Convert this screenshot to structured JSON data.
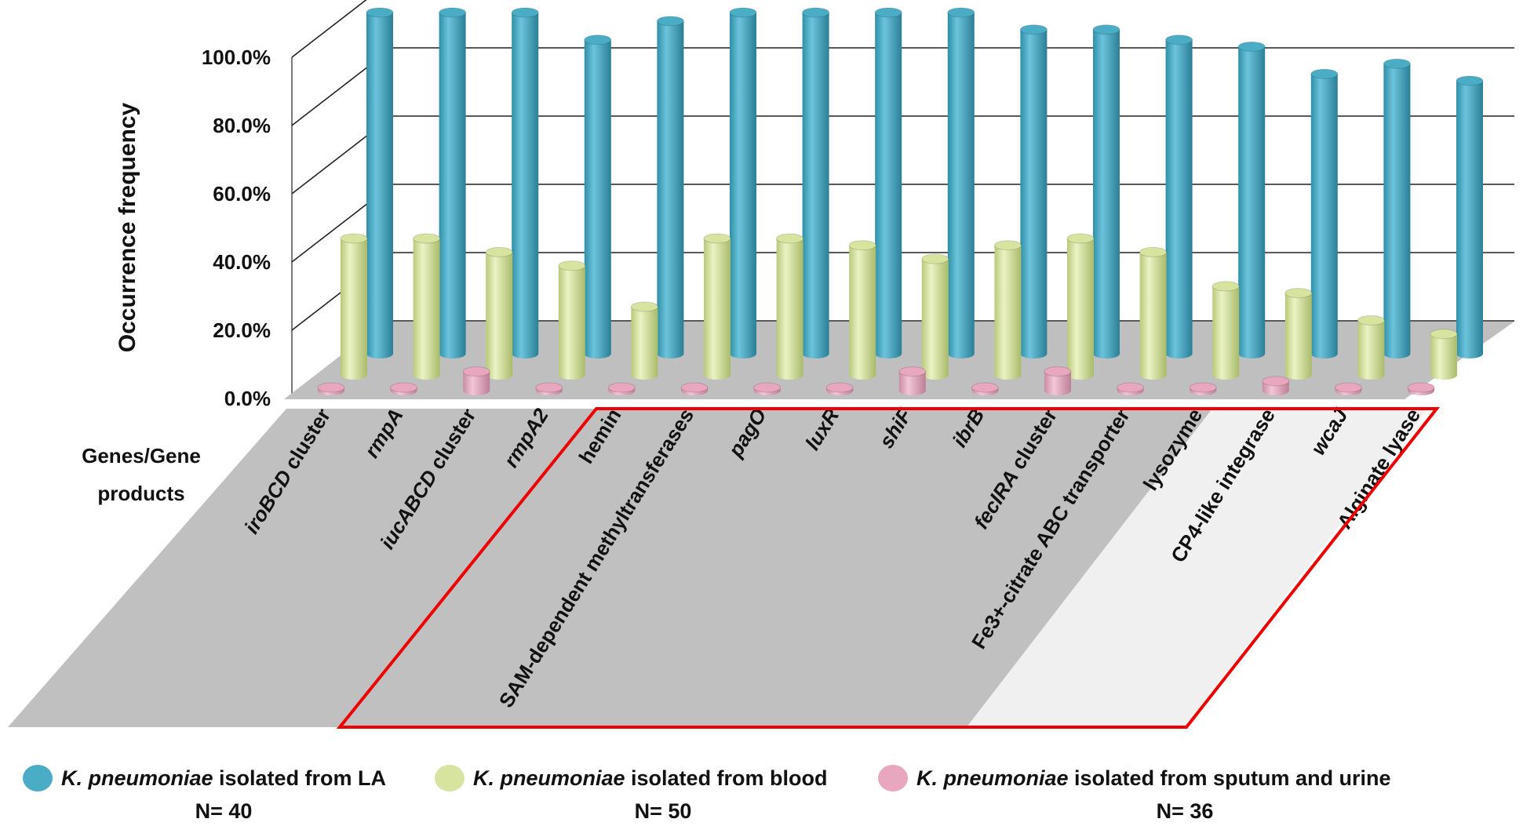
{
  "colors": {
    "la": "#4bacc6",
    "blood": "#d7e4a0",
    "sputum": "#e8a7bf",
    "floor": "#bfbfbf",
    "panel": "#c0c0c0",
    "panel_light": "#f0f0f0",
    "box": "#ee0000"
  },
  "chart_data": {
    "type": "bar",
    "ylabel": "Occurrence frequency",
    "xlabel": "Genes/Gene products",
    "yticks": [
      "0.0%",
      "20.0%",
      "40.0%",
      "60.0%",
      "80.0%",
      "100.0%"
    ],
    "ylim": [
      0,
      100
    ],
    "grid": true,
    "legend_position": "bottom",
    "categories": [
      {
        "pre": "",
        "it": "iroBCD",
        "post": " cluster"
      },
      {
        "pre": "",
        "it": "rmpA",
        "post": ""
      },
      {
        "pre": "",
        "it": "iucABCD",
        "post": " cluster"
      },
      {
        "pre": "",
        "it": "rmpA2",
        "post": ""
      },
      {
        "pre": "hemin",
        "it": "",
        "post": ""
      },
      {
        "pre": "SAM-dependent methyltransferases",
        "it": "",
        "post": ""
      },
      {
        "pre": "",
        "it": "pagO",
        "post": ""
      },
      {
        "pre": "",
        "it": "luxR",
        "post": ""
      },
      {
        "pre": "",
        "it": "shiF",
        "post": ""
      },
      {
        "pre": "",
        "it": "ibrB",
        "post": ""
      },
      {
        "pre": "",
        "it": "fecIRA",
        "post": " cluster"
      },
      {
        "pre": "Fe3+-citrate ABC transporter",
        "it": "",
        "post": ""
      },
      {
        "pre": "lysozyme",
        "it": "",
        "post": ""
      },
      {
        "pre": "CP4-like integrase",
        "it": "",
        "post": ""
      },
      {
        "pre": "",
        "it": "wcaJ",
        "post": ""
      },
      {
        "pre": "Alginate lyase",
        "it": "",
        "post": ""
      }
    ],
    "series": [
      {
        "key": "la",
        "values": [
          100,
          100,
          100,
          92,
          97.5,
          100,
          100,
          100,
          100,
          95,
          95,
          92,
          90,
          82,
          85,
          80
        ]
      },
      {
        "key": "blood",
        "values": [
          40,
          40,
          36,
          32,
          20,
          40,
          40,
          38,
          34,
          38,
          40,
          36,
          26,
          24,
          16,
          12
        ]
      },
      {
        "key": "sputum",
        "values": [
          0,
          0,
          5.6,
          0,
          0,
          0,
          0,
          0,
          5.6,
          0,
          5.6,
          0,
          0,
          2.8,
          0,
          0
        ]
      }
    ]
  },
  "legend": [
    {
      "key": "la",
      "italic": "K. pneumoniae",
      "rest": " isolated from LA",
      "n": "N= 40"
    },
    {
      "key": "blood",
      "italic": "K. pneumoniae",
      "rest": " isolated from blood",
      "n": "N= 50"
    },
    {
      "key": "sputum",
      "italic": "K. pneumoniae",
      "rest": " isolated from sputum and urine",
      "n": "N= 36"
    }
  ],
  "genes_label": [
    "Genes/Gene",
    "products"
  ]
}
